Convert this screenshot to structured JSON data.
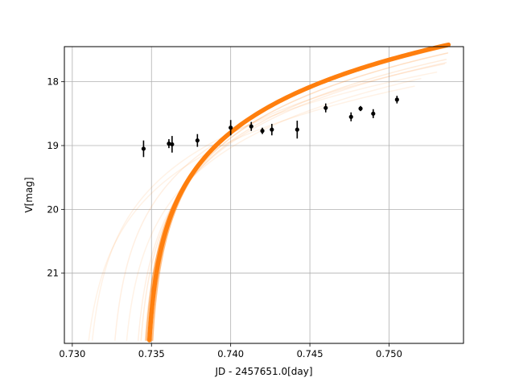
{
  "chart_data": {
    "type": "scatter",
    "title": "",
    "xlabel": "JD - 2457651.0[day]",
    "ylabel": "V[mag]",
    "xlim": [
      0.7295,
      0.7547
    ],
    "ylim": [
      22.1,
      17.45
    ],
    "y_inverted": true,
    "grid": true,
    "legend": "none",
    "xticks": [
      0.73,
      0.735,
      0.74,
      0.745,
      0.75
    ],
    "xtick_labels": [
      "0.730",
      "0.735",
      "0.740",
      "0.745",
      "0.750"
    ],
    "yticks": [
      18,
      19,
      20,
      21
    ],
    "ytick_labels": [
      "18",
      "19",
      "20",
      "21"
    ],
    "colors": {
      "model": "#ff7f0e",
      "points": "#000000",
      "grid": "#b0b0b0"
    },
    "observations": {
      "x": [
        0.7345,
        0.7361,
        0.7363,
        0.7379,
        0.74,
        0.7413,
        0.742,
        0.7426,
        0.7442,
        0.746,
        0.7476,
        0.7482,
        0.749,
        0.7505
      ],
      "y": [
        19.05,
        18.97,
        18.98,
        18.92,
        18.72,
        18.7,
        18.77,
        18.75,
        18.75,
        18.41,
        18.55,
        18.42,
        18.5,
        18.28
      ],
      "yerr": [
        0.13,
        0.07,
        0.13,
        0.1,
        0.12,
        0.07,
        0.05,
        0.09,
        0.14,
        0.07,
        0.07,
        0.04,
        0.07,
        0.06
      ]
    },
    "model_curves": [
      {
        "t0": 0.7346,
        "t_end": 0.75375,
        "m_end": 17.42,
        "width": 5.5,
        "opacity": 1.0
      },
      {
        "t0": 0.7344,
        "t_end": 0.7537,
        "m_end": 17.45,
        "width": 2.0,
        "opacity": 0.5
      },
      {
        "t0": 0.7348,
        "t_end": 0.7538,
        "m_end": 17.4,
        "width": 2.0,
        "opacity": 0.5
      },
      {
        "t0": 0.7343,
        "t_end": 0.7537,
        "m_end": 17.55,
        "width": 1.5,
        "opacity": 0.25
      },
      {
        "t0": 0.734,
        "t_end": 0.7536,
        "m_end": 17.65,
        "width": 1.5,
        "opacity": 0.15
      },
      {
        "t0": 0.7323,
        "t_end": 0.7535,
        "m_end": 17.72,
        "width": 1.5,
        "opacity": 0.12
      },
      {
        "t0": 0.7308,
        "t_end": 0.753,
        "m_end": 17.85,
        "width": 1.5,
        "opacity": 0.1
      },
      {
        "t0": 0.7305,
        "t_end": 0.7516,
        "m_end": 18.07,
        "width": 1.5,
        "opacity": 0.1
      },
      {
        "t0": 0.7338,
        "t_end": 0.7536,
        "m_end": 17.7,
        "width": 1.5,
        "opacity": 0.12
      },
      {
        "t0": 0.733,
        "t_end": 0.752,
        "m_end": 17.95,
        "width": 1.5,
        "opacity": 0.1
      }
    ]
  }
}
